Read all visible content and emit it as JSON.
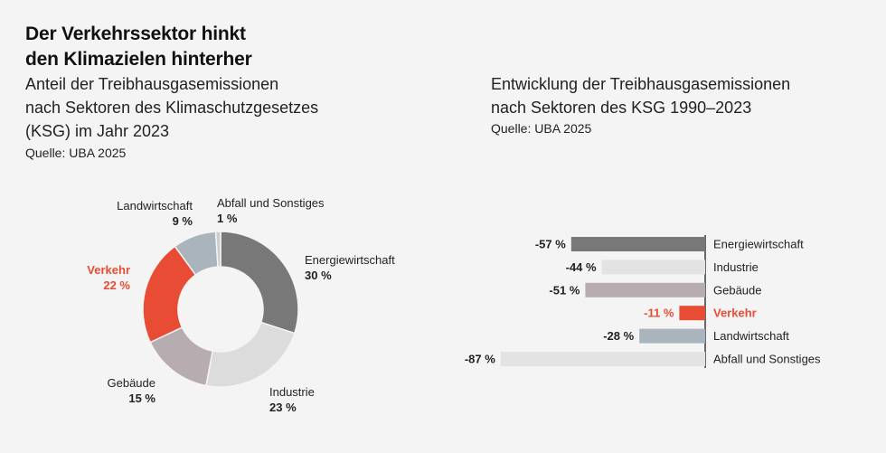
{
  "headline": [
    "Der Verkehrssektor hinkt",
    "den Klimazielen hinterher"
  ],
  "left_chart": {
    "subtitle": [
      "Anteil der Treibhausgasemissionen",
      "nach Sektoren des Klimaschutzgesetzes",
      "(KSG) im Jahr 2023"
    ],
    "source": "Quelle: UBA 2025"
  },
  "right_chart": {
    "subtitle": [
      "Entwicklung der Treibhausgasemissionen",
      "nach Sektoren des KSG 1990–2023"
    ],
    "source": "Quelle: UBA 2025"
  },
  "chart_data": [
    {
      "type": "pie",
      "title": "Anteil der Treibhausgasemissionen nach Sektoren des Klimaschutzgesetzes (KSG) im Jahr 2023",
      "slices": [
        {
          "name": "Energiewirtschaft",
          "value": 30,
          "label": "30 %",
          "color": "#787878"
        },
        {
          "name": "Industrie",
          "value": 23,
          "label": "23 %",
          "color": "#dcdcdc"
        },
        {
          "name": "Gebäude",
          "value": 15,
          "label": "15 %",
          "color": "#b7adb1"
        },
        {
          "name": "Verkehr",
          "value": 22,
          "label": "22 %",
          "color": "#e84c35",
          "highlight": true
        },
        {
          "name": "Landwirtschaft",
          "value": 9,
          "label": "9 %",
          "color": "#a9b4bc"
        },
        {
          "name": "Abfall und Sonstiges",
          "value": 1,
          "label": "1 %",
          "color": "#cccccc"
        }
      ]
    },
    {
      "type": "bar",
      "orientation": "horizontal",
      "title": "Entwicklung der Treibhausgasemissionen nach Sektoren des KSG 1990–2023",
      "categories": [
        "Energiewirtschaft",
        "Industrie",
        "Gebäude",
        "Verkehr",
        "Landwirtschaft",
        "Abfall und Sonstiges"
      ],
      "values": [
        -57,
        -44,
        -51,
        -11,
        -28,
        -87
      ],
      "labels": [
        "-57 %",
        "-44 %",
        "-51 %",
        "-11 %",
        "-28 %",
        "-87 %"
      ],
      "colors": [
        "#787878",
        "#e3e3e3",
        "#b7adb1",
        "#e84c35",
        "#a9b4bc",
        "#e3e3e3"
      ],
      "highlight_index": 3,
      "xlim": [
        -100,
        0
      ]
    }
  ]
}
